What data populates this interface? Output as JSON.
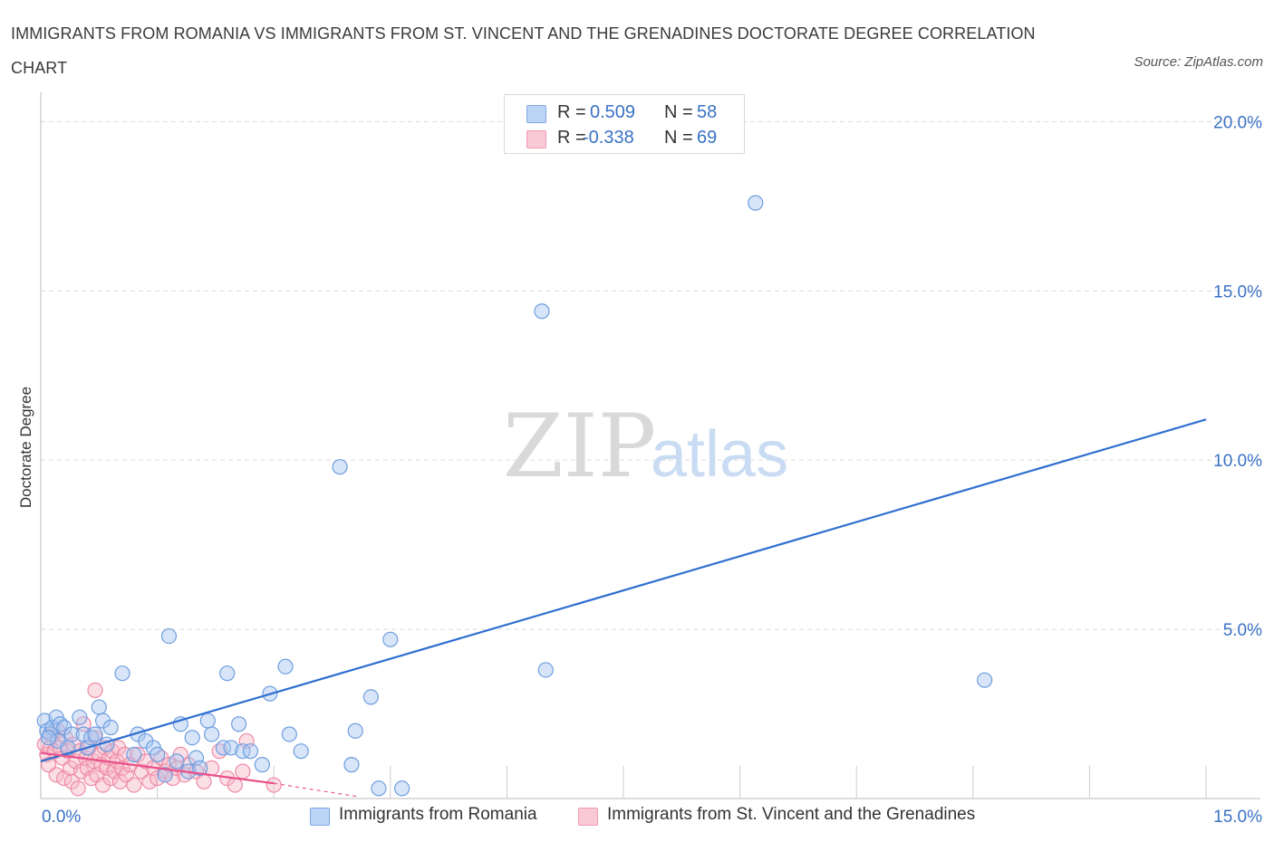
{
  "header": {
    "title": "IMMIGRANTS FROM ROMANIA VS IMMIGRANTS FROM ST. VINCENT AND THE GRENADINES DOCTORATE DEGREE CORRELATION CHART",
    "source": "Source: ZipAtlas.com"
  },
  "watermark": {
    "zip": "ZIP",
    "atlas": "atlas"
  },
  "stats_legend": {
    "r_label": "R =",
    "n_label": "N =",
    "rows": [
      {
        "r": "0.509",
        "n": "58",
        "color": "#a8c6f0"
      },
      {
        "r": "-0.338",
        "n": "69",
        "color": "#f6b8c8"
      }
    ]
  },
  "colors": {
    "blue_fill": "#a8c6f0",
    "blue_stroke": "#6e9ee0",
    "blue_line": "#2f6fd0",
    "pink_fill": "#f6b8c8",
    "pink_stroke": "#ee8aa6",
    "pink_line": "#e8508a",
    "axis_label": "#3a72c4",
    "grid": "#dcdcdc"
  },
  "chart_data": {
    "type": "scatter",
    "title": "IMMIGRANTS FROM ROMANIA VS IMMIGRANTS FROM ST. VINCENT AND THE GRENADINES DOCTORATE DEGREE CORRELATION CHART",
    "xlabel": "",
    "ylabel": "Doctorate Degree",
    "xlim": [
      0,
      15
    ],
    "ylim": [
      0,
      20.6
    ],
    "x_tick_labels": [
      "0.0%",
      "15.0%"
    ],
    "y_ticks": [
      5,
      10,
      15,
      20
    ],
    "y_tick_labels": [
      "5.0%",
      "10.0%",
      "15.0%",
      "20.0%"
    ],
    "grid": true,
    "series": [
      {
        "name": "Immigrants from Romania",
        "color": "#a8c6f0",
        "trend": {
          "x0": 0.0,
          "y0": 1.1,
          "x1": 15.0,
          "y1": 11.2
        },
        "points": [
          [
            0.05,
            2.3
          ],
          [
            0.08,
            2.0
          ],
          [
            0.12,
            1.9
          ],
          [
            0.15,
            2.1
          ],
          [
            0.2,
            2.4
          ],
          [
            0.22,
            1.7
          ],
          [
            0.25,
            2.2
          ],
          [
            0.3,
            2.1
          ],
          [
            0.35,
            1.5
          ],
          [
            0.4,
            1.9
          ],
          [
            0.5,
            2.4
          ],
          [
            0.55,
            1.9
          ],
          [
            0.6,
            1.5
          ],
          [
            0.65,
            1.8
          ],
          [
            0.7,
            1.9
          ],
          [
            0.75,
            2.7
          ],
          [
            0.8,
            2.3
          ],
          [
            0.85,
            1.6
          ],
          [
            0.9,
            2.1
          ],
          [
            1.05,
            3.7
          ],
          [
            1.2,
            1.3
          ],
          [
            1.25,
            1.9
          ],
          [
            1.35,
            1.7
          ],
          [
            1.45,
            1.5
          ],
          [
            1.5,
            1.3
          ],
          [
            1.6,
            0.7
          ],
          [
            1.65,
            4.8
          ],
          [
            1.75,
            1.1
          ],
          [
            1.8,
            2.2
          ],
          [
            1.9,
            0.8
          ],
          [
            1.95,
            1.8
          ],
          [
            2.0,
            1.2
          ],
          [
            2.05,
            0.9
          ],
          [
            2.15,
            2.3
          ],
          [
            2.2,
            1.9
          ],
          [
            2.35,
            1.5
          ],
          [
            2.4,
            3.7
          ],
          [
            2.45,
            1.5
          ],
          [
            2.55,
            2.2
          ],
          [
            2.6,
            1.4
          ],
          [
            2.7,
            1.4
          ],
          [
            2.85,
            1.0
          ],
          [
            2.95,
            3.1
          ],
          [
            3.15,
            3.9
          ],
          [
            3.2,
            1.9
          ],
          [
            3.35,
            1.4
          ],
          [
            3.85,
            9.8
          ],
          [
            4.0,
            1.0
          ],
          [
            4.05,
            2.0
          ],
          [
            4.25,
            3.0
          ],
          [
            4.35,
            0.3
          ],
          [
            4.5,
            4.7
          ],
          [
            4.65,
            0.3
          ],
          [
            6.45,
            14.4
          ],
          [
            6.5,
            3.8
          ],
          [
            9.2,
            17.6
          ],
          [
            12.15,
            3.5
          ],
          [
            0.1,
            1.8
          ]
        ]
      },
      {
        "name": "Immigrants from St. Vincent and the Grenadines",
        "color": "#f6b8c8",
        "trend": {
          "x0": 0.0,
          "y0": 1.35,
          "x1": 3.0,
          "y1": 0.45,
          "dash_to_x": 4.1,
          "dash_to_y": 0.05
        },
        "points": [
          [
            0.05,
            1.6
          ],
          [
            0.08,
            1.3
          ],
          [
            0.1,
            1.0
          ],
          [
            0.12,
            1.5
          ],
          [
            0.15,
            1.9
          ],
          [
            0.18,
            1.4
          ],
          [
            0.2,
            0.7
          ],
          [
            0.22,
            2.0
          ],
          [
            0.25,
            1.5
          ],
          [
            0.28,
            1.2
          ],
          [
            0.3,
            0.6
          ],
          [
            0.32,
            1.8
          ],
          [
            0.35,
            1.4
          ],
          [
            0.38,
            0.9
          ],
          [
            0.4,
            0.5
          ],
          [
            0.42,
            1.6
          ],
          [
            0.45,
            1.1
          ],
          [
            0.48,
            0.3
          ],
          [
            0.5,
            1.4
          ],
          [
            0.52,
            0.8
          ],
          [
            0.55,
            2.2
          ],
          [
            0.58,
            1.2
          ],
          [
            0.6,
            0.9
          ],
          [
            0.62,
            1.5
          ],
          [
            0.65,
            0.6
          ],
          [
            0.68,
            1.1
          ],
          [
            0.7,
            1.8
          ],
          [
            0.72,
            0.7
          ],
          [
            0.75,
            1.3
          ],
          [
            0.78,
            1.0
          ],
          [
            0.8,
            0.4
          ],
          [
            0.82,
            1.5
          ],
          [
            0.85,
            0.9
          ],
          [
            0.88,
            1.2
          ],
          [
            0.9,
            0.6
          ],
          [
            0.92,
            1.4
          ],
          [
            0.95,
            0.8
          ],
          [
            0.98,
            1.1
          ],
          [
            1.0,
            1.5
          ],
          [
            1.02,
            0.5
          ],
          [
            1.05,
            0.9
          ],
          [
            1.08,
            1.3
          ],
          [
            1.1,
            0.7
          ],
          [
            1.15,
            1.0
          ],
          [
            1.2,
            0.4
          ],
          [
            1.25,
            1.3
          ],
          [
            1.3,
            0.8
          ],
          [
            1.35,
            1.1
          ],
          [
            1.4,
            0.5
          ],
          [
            1.45,
            0.9
          ],
          [
            1.5,
            0.6
          ],
          [
            1.55,
            1.2
          ],
          [
            1.6,
            0.8
          ],
          [
            1.65,
            1.0
          ],
          [
            1.7,
            0.6
          ],
          [
            1.75,
            0.9
          ],
          [
            1.8,
            1.3
          ],
          [
            1.85,
            0.7
          ],
          [
            1.9,
            1.0
          ],
          [
            2.0,
            0.8
          ],
          [
            2.1,
            0.5
          ],
          [
            2.2,
            0.9
          ],
          [
            2.3,
            1.4
          ],
          [
            2.4,
            0.6
          ],
          [
            2.5,
            0.4
          ],
          [
            2.6,
            0.8
          ],
          [
            0.7,
            3.2
          ],
          [
            2.65,
            1.7
          ],
          [
            3.0,
            0.4
          ]
        ]
      }
    ]
  },
  "bottom_legend": [
    {
      "label": "Immigrants from Romania",
      "color": "#a8c6f0"
    },
    {
      "label": "Immigrants from St. Vincent and the Grenadines",
      "color": "#f6b8c8"
    }
  ]
}
